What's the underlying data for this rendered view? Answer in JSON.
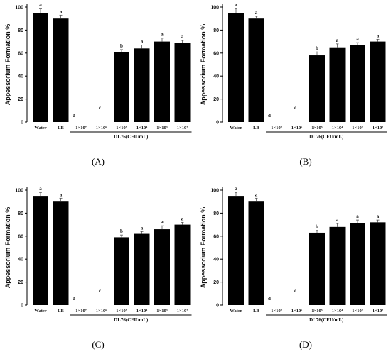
{
  "chart_data": [
    {
      "type": "bar",
      "caption": "(A)",
      "ylabel": "Appessorium Formation %",
      "ylim": [
        0,
        100
      ],
      "yticks": [
        "0",
        "20",
        "40",
        "60",
        "80",
        "100"
      ],
      "group_label": "DL76(CFU/mL)",
      "categories": [
        "Water",
        "LB",
        "1×10⁷",
        "1×10⁶",
        "1×10⁵",
        "1×10⁴",
        "1×10³",
        "1×10²"
      ],
      "values": [
        95,
        90,
        0,
        0,
        61,
        64,
        70,
        69
      ],
      "errors": [
        4,
        3,
        0,
        0,
        2,
        3,
        3,
        2
      ],
      "letters": [
        "a",
        "a",
        "d",
        "c",
        "b",
        "a",
        "a",
        "a"
      ]
    },
    {
      "type": "bar",
      "caption": "(B)",
      "ylabel": "Appessorium Formation %",
      "ylim": [
        0,
        100
      ],
      "yticks": [
        "0",
        "20",
        "40",
        "60",
        "80",
        "100"
      ],
      "group_label": "DL76(CFU/mL)",
      "categories": [
        "Water",
        "LB",
        "1×10⁷",
        "1×10⁶",
        "1×10⁵",
        "1×10⁴",
        "1×10³",
        "1×10²"
      ],
      "values": [
        95,
        90,
        0,
        0,
        58,
        65,
        67,
        70
      ],
      "errors": [
        4,
        2,
        0,
        0,
        3,
        3,
        2,
        2
      ],
      "letters": [
        "a",
        "a",
        "d",
        "c",
        "b",
        "a",
        "a",
        "a"
      ]
    },
    {
      "type": "bar",
      "caption": "(C)",
      "ylabel": "Appessorium Formation %",
      "ylim": [
        0,
        100
      ],
      "yticks": [
        "0",
        "20",
        "40",
        "60",
        "80",
        "100"
      ],
      "group_label": "DL76(CFU/mL)",
      "categories": [
        "Water",
        "LB",
        "1×10⁷",
        "1×10⁶",
        "1×10⁵",
        "1×10⁴",
        "1×10³",
        "1×10²"
      ],
      "values": [
        95,
        90,
        0,
        0,
        59,
        62,
        66,
        70
      ],
      "errors": [
        3,
        3,
        0,
        0,
        2,
        2,
        3,
        2
      ],
      "letters": [
        "a",
        "a",
        "d",
        "c",
        "b",
        "a",
        "a",
        "a"
      ]
    },
    {
      "type": "bar",
      "caption": "(D)",
      "ylabel": "Appessorium Formation %",
      "ylim": [
        0,
        100
      ],
      "yticks": [
        "0",
        "20",
        "40",
        "60",
        "80",
        "100"
      ],
      "group_label": "DL76(CFU/mL)",
      "categories": [
        "Water",
        "LB",
        "1×10⁷",
        "1×10⁶",
        "1×10⁵",
        "1×10⁴",
        "1×10³",
        "1×10²"
      ],
      "values": [
        95,
        90,
        0,
        0,
        63,
        68,
        71,
        72
      ],
      "errors": [
        3,
        3,
        0,
        0,
        2,
        3,
        3,
        2
      ],
      "letters": [
        "a",
        "a",
        "d",
        "c",
        "b",
        "a",
        "a",
        "a"
      ]
    }
  ]
}
